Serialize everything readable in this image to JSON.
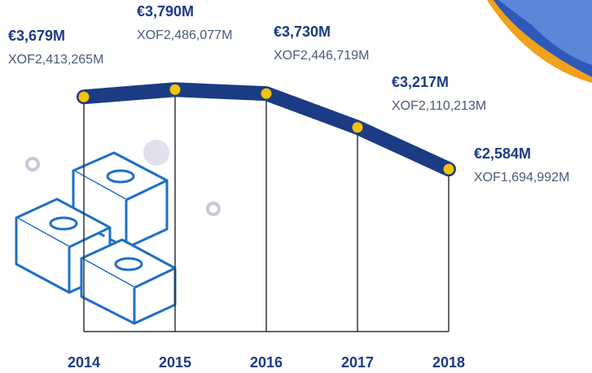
{
  "chart_data": {
    "type": "line",
    "categories": [
      "2014",
      "2015",
      "2016",
      "2017",
      "2018"
    ],
    "values": [
      3679,
      3790,
      3730,
      3217,
      2584
    ],
    "value_labels": [
      "€3,679M",
      "€3,790M",
      "€3,730M",
      "€3,217M",
      "€2,584M"
    ],
    "secondary_labels": [
      "XOF2,413,265M",
      "XOF2,486,077M",
      "XOF2,446,719M",
      "XOF2,110,213M",
      "XOF1,694,992M"
    ],
    "color": "#1b3b84",
    "marker_color": "#f5c400",
    "ylim": [
      0,
      5000
    ]
  }
}
